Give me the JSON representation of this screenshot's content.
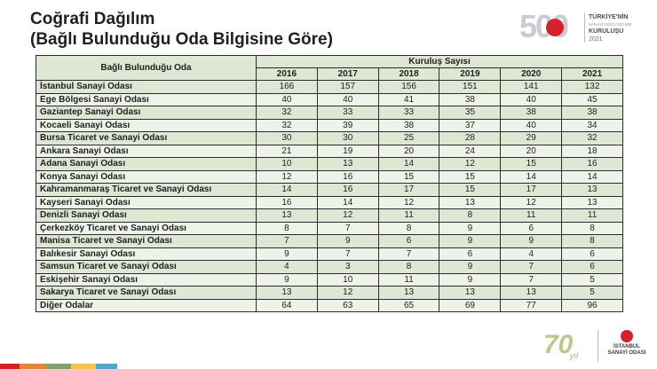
{
  "title": {
    "line1": "Coğrafi Dağılım",
    "line2": "(Bağlı Bulunduğu Oda Bilgisine Göre)"
  },
  "header_logo": {
    "number": "500",
    "line1": "TÜRKİYE'NİN",
    "line2": "SANAYİ GÜCÜ İSO 500",
    "line3": "KURULUŞU",
    "line4": "2021",
    "brand_color": "#d6202a"
  },
  "table": {
    "name_header": "Bağlı Bulunduğu Oda",
    "group_header": "Kuruluş Sayısı",
    "years": [
      "2016",
      "2017",
      "2018",
      "2019",
      "2020",
      "2021"
    ],
    "rows": [
      {
        "name": "İstanbul Sanayi Odası",
        "values": [
          "166",
          "157",
          "156",
          "151",
          "141",
          "132"
        ]
      },
      {
        "name": "Ege Bölgesi Sanayi Odası",
        "values": [
          "40",
          "40",
          "41",
          "38",
          "40",
          "45"
        ]
      },
      {
        "name": "Gaziantep Sanayi Odası",
        "values": [
          "32",
          "33",
          "33",
          "35",
          "38",
          "38"
        ]
      },
      {
        "name": "Kocaeli Sanayi Odası",
        "values": [
          "32",
          "39",
          "38",
          "37",
          "40",
          "34"
        ]
      },
      {
        "name": "Bursa Ticaret ve Sanayi Odası",
        "values": [
          "30",
          "30",
          "25",
          "28",
          "29",
          "32"
        ]
      },
      {
        "name": "Ankara Sanayi Odası",
        "values": [
          "21",
          "19",
          "20",
          "24",
          "20",
          "18"
        ]
      },
      {
        "name": "Adana Sanayi Odası",
        "values": [
          "10",
          "13",
          "14",
          "12",
          "15",
          "16"
        ]
      },
      {
        "name": "Konya Sanayi Odası",
        "values": [
          "12",
          "16",
          "15",
          "15",
          "14",
          "14"
        ]
      },
      {
        "name": "Kahramanmaraş Ticaret ve Sanayi Odası",
        "values": [
          "14",
          "16",
          "17",
          "15",
          "17",
          "13"
        ]
      },
      {
        "name": "Kayseri Sanayi Odası",
        "values": [
          "16",
          "14",
          "12",
          "13",
          "12",
          "13"
        ]
      },
      {
        "name": "Denizli Sanayi Odası",
        "values": [
          "13",
          "12",
          "11",
          "8",
          "11",
          "11"
        ]
      },
      {
        "name": "Çerkezköy Ticaret ve Sanayi Odası",
        "values": [
          "8",
          "7",
          "8",
          "9",
          "6",
          "8"
        ]
      },
      {
        "name": "Manisa Ticaret ve Sanayi Odası",
        "values": [
          "7",
          "9",
          "6",
          "9",
          "9",
          "8"
        ]
      },
      {
        "name": "Balıkesir Sanayi Odası",
        "values": [
          "9",
          "7",
          "7",
          "6",
          "4",
          "6"
        ]
      },
      {
        "name": "Samsun Ticaret ve Sanayi Odası",
        "values": [
          "4",
          "3",
          "8",
          "9",
          "7",
          "6"
        ]
      },
      {
        "name": "Eskişehir Sanayi Odası",
        "values": [
          "9",
          "10",
          "11",
          "9",
          "7",
          "5"
        ]
      },
      {
        "name": "Sakarya Ticaret ve Sanayi Odası",
        "values": [
          "13",
          "12",
          "13",
          "13",
          "13",
          "5"
        ]
      },
      {
        "name": "Diğer Odalar",
        "values": [
          "64",
          "63",
          "65",
          "69",
          "77",
          "96"
        ]
      }
    ]
  },
  "footer": {
    "anniversary_number": "70",
    "anniversary_word": "yıl",
    "org_line1": "İSTANBUL",
    "org_line2": "SANAYİ ODASI"
  }
}
